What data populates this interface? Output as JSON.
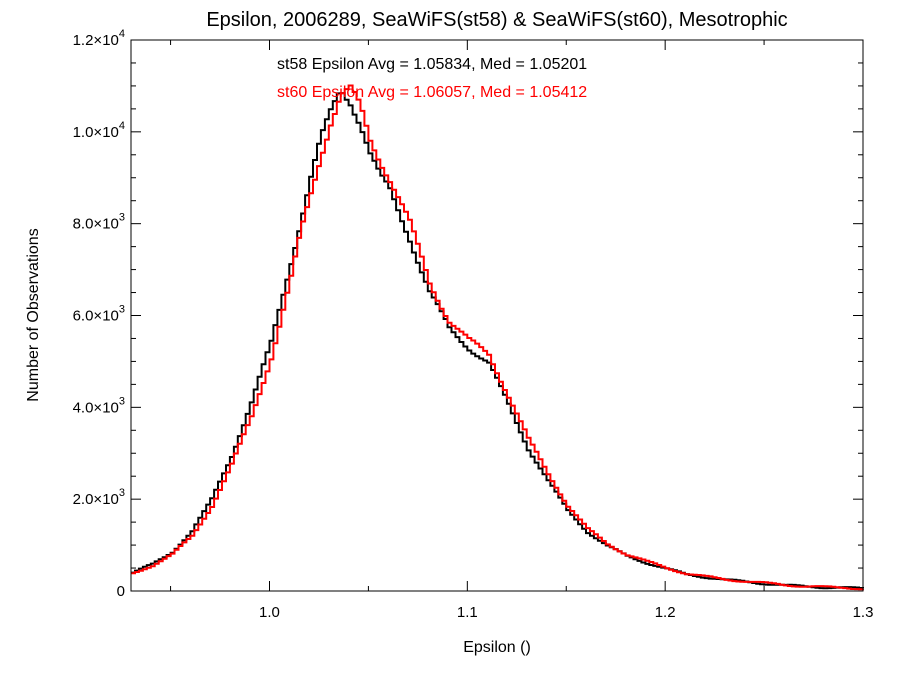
{
  "chart_data": {
    "type": "line",
    "title": "Epsilon, 2006289, SeaWiFS(st58) & SeaWiFS(st60), Mesotrophic",
    "xlabel": "Epsilon ()",
    "ylabel": "Number of Observations",
    "xlim": [
      0.93,
      1.3
    ],
    "ylim": [
      0,
      12000
    ],
    "x_ticks": [
      1.0,
      1.1,
      1.2,
      1.3
    ],
    "x_tick_labels": [
      "1.0",
      "1.1",
      "1.2",
      "1.3"
    ],
    "y_ticks": [
      0,
      2000,
      4000,
      6000,
      8000,
      10000,
      12000
    ],
    "y_tick_labels": [
      {
        "mantissa": "0",
        "exp": ""
      },
      {
        "mantissa": "2.0×10",
        "exp": "3"
      },
      {
        "mantissa": "4.0×10",
        "exp": "3"
      },
      {
        "mantissa": "6.0×10",
        "exp": "3"
      },
      {
        "mantissa": "8.0×10",
        "exp": "3"
      },
      {
        "mantissa": "1.0×10",
        "exp": "4"
      },
      {
        "mantissa": "1.2×10",
        "exp": "4"
      }
    ],
    "annotations": [
      {
        "text": "st58 Epsilon Avg = 1.05834, Med = 1.05201",
        "color": "#000000"
      },
      {
        "text": "st60 Epsilon Avg = 1.06057, Med = 1.05412",
        "color": "#ff0000"
      }
    ],
    "series": [
      {
        "color": "#000000",
        "x": [
          0.93,
          0.94,
          0.95,
          0.96,
          0.97,
          0.98,
          0.99,
          1.0,
          1.01,
          1.015,
          1.02,
          1.025,
          1.03,
          1.035,
          1.04,
          1.045,
          1.05,
          1.055,
          1.06,
          1.07,
          1.08,
          1.09,
          1.1,
          1.11,
          1.12,
          1.13,
          1.14,
          1.15,
          1.16,
          1.17,
          1.18,
          1.19,
          1.2,
          1.21,
          1.22,
          1.23,
          1.24,
          1.25,
          1.26,
          1.27,
          1.28,
          1.29,
          1.3
        ],
        "y": [
          400,
          580,
          850,
          1300,
          2000,
          2950,
          4100,
          5400,
          7200,
          8100,
          9000,
          9800,
          10400,
          10950,
          10700,
          10200,
          9500,
          9000,
          8700,
          7700,
          6500,
          5700,
          5300,
          4950,
          4050,
          3100,
          2400,
          1750,
          1280,
          980,
          760,
          610,
          480,
          360,
          300,
          240,
          200,
          160,
          120,
          100,
          80,
          70,
          50
        ]
      },
      {
        "color": "#ff0000",
        "x": [
          0.93,
          0.94,
          0.95,
          0.96,
          0.97,
          0.98,
          0.99,
          1.0,
          1.01,
          1.015,
          1.02,
          1.025,
          1.03,
          1.035,
          1.04,
          1.045,
          1.05,
          1.055,
          1.06,
          1.07,
          1.08,
          1.09,
          1.1,
          1.11,
          1.12,
          1.13,
          1.14,
          1.15,
          1.16,
          1.17,
          1.18,
          1.19,
          1.2,
          1.21,
          1.22,
          1.23,
          1.24,
          1.25,
          1.26,
          1.27,
          1.28,
          1.29,
          1.3
        ],
        "y": [
          380,
          560,
          800,
          1200,
          1850,
          2750,
          3800,
          5100,
          6800,
          7800,
          8650,
          9500,
          10250,
          10800,
          10900,
          10500,
          9800,
          9400,
          9000,
          8000,
          6700,
          5900,
          5450,
          5150,
          4250,
          3300,
          2550,
          1850,
          1350,
          1020,
          790,
          640,
          500,
          380,
          310,
          250,
          210,
          170,
          130,
          105,
          85,
          72,
          52
        ]
      }
    ]
  }
}
